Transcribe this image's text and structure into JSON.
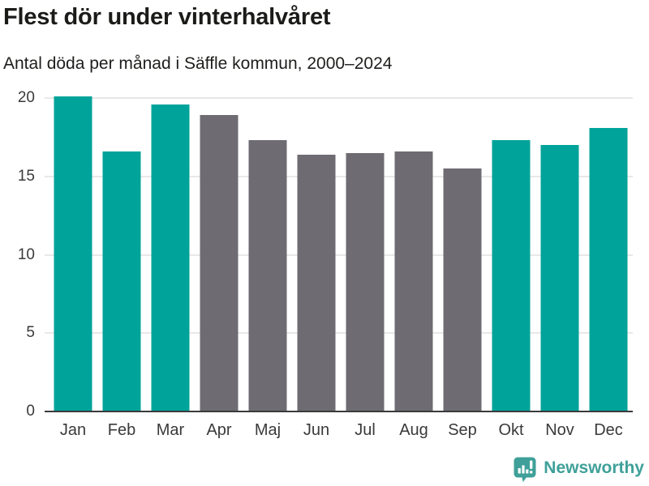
{
  "header": {
    "title": "Flest dör under vinterhalvåret",
    "subtitle": "Antal döda per månad i Säffle kommun, 2000–2024"
  },
  "chart_data": {
    "type": "bar",
    "title": "Flest dör under vinterhalvåret",
    "subtitle": "Antal döda per månad i Säffle kommun, 2000–2024",
    "categories": [
      "Jan",
      "Feb",
      "Mar",
      "Apr",
      "Maj",
      "Jun",
      "Jul",
      "Aug",
      "Sep",
      "Okt",
      "Nov",
      "Dec"
    ],
    "values": [
      20.1,
      16.6,
      19.6,
      18.9,
      17.3,
      16.4,
      16.5,
      16.6,
      15.5,
      17.3,
      17.0,
      18.1
    ],
    "bar_colors": [
      "#00a39a",
      "#00a39a",
      "#00a39a",
      "#6e6c72",
      "#6e6c72",
      "#6e6c72",
      "#6e6c72",
      "#6e6c72",
      "#6e6c72",
      "#00a39a",
      "#00a39a",
      "#00a39a"
    ],
    "highlighted_categories": [
      "Jan",
      "Feb",
      "Mar",
      "Okt",
      "Nov",
      "Dec"
    ],
    "xlabel": "",
    "ylabel": "",
    "ylim": [
      0,
      20
    ],
    "yticks": [
      0,
      5,
      10,
      15,
      20
    ],
    "grid": true,
    "legend": "none"
  },
  "branding": {
    "logo_text": "Newsworthy",
    "logo_icon": "newsworthy-speech-bubble-bar-chart",
    "logo_color": "#3fa099"
  },
  "colors": {
    "background": "#ffffff",
    "bar_highlight": "#00a39a",
    "bar_muted": "#6e6c72",
    "gridline": "#e8e8e8",
    "axis_line": "#3b3b3b",
    "title_text": "#1b1b19",
    "tick_text": "#3a3a3a"
  }
}
